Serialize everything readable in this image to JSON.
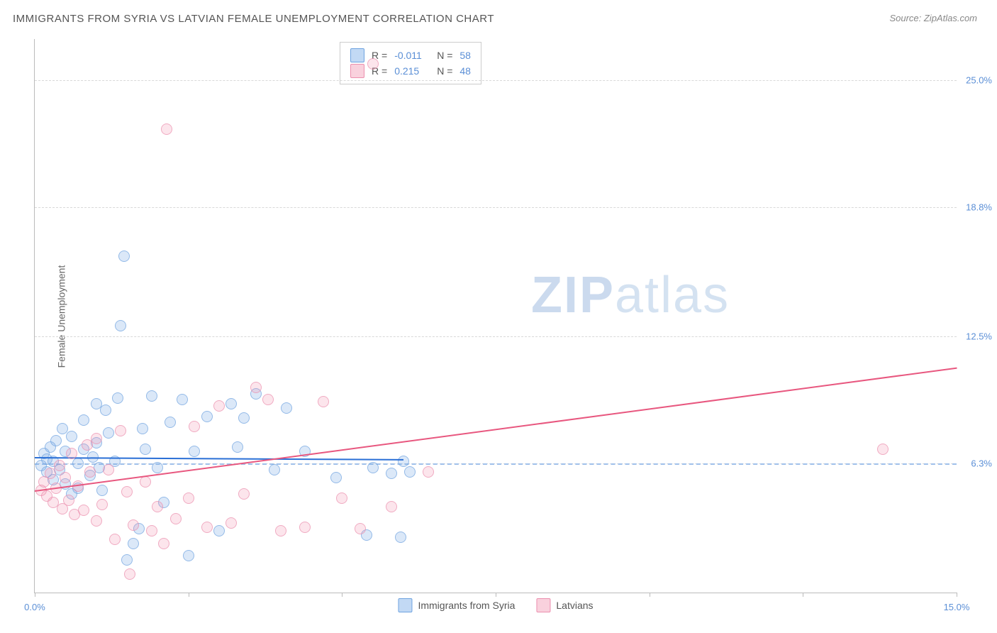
{
  "title": "IMMIGRANTS FROM SYRIA VS LATVIAN FEMALE UNEMPLOYMENT CORRELATION CHART",
  "source": "Source: ZipAtlas.com",
  "ylabel": "Female Unemployment",
  "watermark_a": "ZIP",
  "watermark_b": "atlas",
  "chart": {
    "type": "scatter",
    "xlim": [
      0,
      15
    ],
    "ylim": [
      0,
      27
    ],
    "x_ticks": [
      0,
      2.5,
      5,
      7.5,
      10,
      12.5,
      15
    ],
    "x_tick_labels": {
      "0": "0.0%",
      "15": "15.0%"
    },
    "y_gridlines": [
      6.3,
      12.5,
      18.8,
      25.0
    ],
    "y_tick_labels": [
      "6.3%",
      "12.5%",
      "18.8%",
      "25.0%"
    ],
    "ref_dash_y": 6.3,
    "background_color": "#ffffff",
    "grid_color": "#d8d8d8",
    "axis_color": "#bbbbbb",
    "tick_label_color": "#5b8fd6",
    "marker_size": 14,
    "series": [
      {
        "name": "Immigrants from Syria",
        "color_fill": "rgba(120,170,230,0.35)",
        "color_stroke": "#6fa3e0",
        "trend_color": "#2a6fd6",
        "r": -0.011,
        "n": 58,
        "trend": {
          "x1": 0,
          "y1": 6.6,
          "x2": 6.0,
          "y2": 6.5
        },
        "points": [
          [
            0.1,
            6.2
          ],
          [
            0.15,
            6.8
          ],
          [
            0.2,
            5.9
          ],
          [
            0.2,
            6.5
          ],
          [
            0.25,
            7.1
          ],
          [
            0.3,
            5.5
          ],
          [
            0.3,
            6.4
          ],
          [
            0.35,
            7.4
          ],
          [
            0.4,
            6.0
          ],
          [
            0.45,
            8.0
          ],
          [
            0.5,
            5.3
          ],
          [
            0.5,
            6.9
          ],
          [
            0.6,
            7.6
          ],
          [
            0.6,
            4.8
          ],
          [
            0.7,
            5.1
          ],
          [
            0.7,
            6.3
          ],
          [
            0.8,
            7.0
          ],
          [
            0.8,
            8.4
          ],
          [
            0.9,
            5.7
          ],
          [
            0.95,
            6.6
          ],
          [
            1.0,
            9.2
          ],
          [
            1.0,
            7.3
          ],
          [
            1.05,
            6.1
          ],
          [
            1.1,
            5.0
          ],
          [
            1.15,
            8.9
          ],
          [
            1.2,
            7.8
          ],
          [
            1.3,
            6.4
          ],
          [
            1.35,
            9.5
          ],
          [
            1.4,
            13.0
          ],
          [
            1.45,
            16.4
          ],
          [
            1.5,
            1.6
          ],
          [
            1.6,
            2.4
          ],
          [
            1.7,
            3.1
          ],
          [
            1.75,
            8.0
          ],
          [
            1.8,
            7.0
          ],
          [
            1.9,
            9.6
          ],
          [
            2.0,
            6.1
          ],
          [
            2.1,
            4.4
          ],
          [
            2.2,
            8.3
          ],
          [
            2.4,
            9.4
          ],
          [
            2.5,
            1.8
          ],
          [
            2.6,
            6.9
          ],
          [
            2.8,
            8.6
          ],
          [
            3.0,
            3.0
          ],
          [
            3.2,
            9.2
          ],
          [
            3.3,
            7.1
          ],
          [
            3.4,
            8.5
          ],
          [
            3.6,
            9.7
          ],
          [
            3.9,
            6.0
          ],
          [
            4.1,
            9.0
          ],
          [
            4.4,
            6.9
          ],
          [
            4.9,
            5.6
          ],
          [
            5.4,
            2.8
          ],
          [
            5.5,
            6.1
          ],
          [
            5.8,
            5.8
          ],
          [
            5.95,
            2.7
          ],
          [
            6.0,
            6.4
          ],
          [
            6.1,
            5.9
          ]
        ]
      },
      {
        "name": "Latvians",
        "color_fill": "rgba(240,140,170,0.3)",
        "color_stroke": "#ec8fae",
        "trend_color": "#e8577f",
        "r": 0.215,
        "n": 48,
        "trend": {
          "x1": 0,
          "y1": 5.0,
          "x2": 15.0,
          "y2": 11.0
        },
        "points": [
          [
            0.1,
            5.0
          ],
          [
            0.15,
            5.4
          ],
          [
            0.2,
            4.7
          ],
          [
            0.25,
            5.8
          ],
          [
            0.3,
            4.4
          ],
          [
            0.35,
            5.1
          ],
          [
            0.4,
            6.2
          ],
          [
            0.45,
            4.1
          ],
          [
            0.5,
            5.6
          ],
          [
            0.55,
            4.5
          ],
          [
            0.6,
            6.8
          ],
          [
            0.65,
            3.8
          ],
          [
            0.7,
            5.2
          ],
          [
            0.8,
            4.0
          ],
          [
            0.85,
            7.2
          ],
          [
            0.9,
            5.9
          ],
          [
            1.0,
            3.5
          ],
          [
            1.0,
            7.5
          ],
          [
            1.1,
            4.3
          ],
          [
            1.2,
            6.0
          ],
          [
            1.3,
            2.6
          ],
          [
            1.4,
            7.9
          ],
          [
            1.5,
            4.9
          ],
          [
            1.55,
            0.9
          ],
          [
            1.6,
            3.3
          ],
          [
            1.8,
            5.4
          ],
          [
            1.9,
            3.0
          ],
          [
            2.0,
            4.2
          ],
          [
            2.1,
            2.4
          ],
          [
            2.15,
            22.6
          ],
          [
            2.3,
            3.6
          ],
          [
            2.5,
            4.6
          ],
          [
            2.6,
            8.1
          ],
          [
            2.8,
            3.2
          ],
          [
            3.0,
            9.1
          ],
          [
            3.2,
            3.4
          ],
          [
            3.4,
            4.8
          ],
          [
            3.6,
            10.0
          ],
          [
            3.8,
            9.4
          ],
          [
            4.0,
            3.0
          ],
          [
            4.4,
            3.2
          ],
          [
            4.7,
            9.3
          ],
          [
            5.0,
            4.6
          ],
          [
            5.3,
            3.1
          ],
          [
            5.5,
            25.8
          ],
          [
            5.8,
            4.2
          ],
          [
            6.4,
            5.9
          ],
          [
            13.8,
            7.0
          ]
        ]
      }
    ]
  },
  "legend_top": {
    "rows": [
      {
        "sw": "blue",
        "r_label": "R =",
        "r": "-0.011",
        "n_label": "N =",
        "n": "58"
      },
      {
        "sw": "pink",
        "r_label": "R =",
        "r": "0.215",
        "n_label": "N =",
        "n": "48"
      }
    ]
  },
  "legend_bottom": [
    {
      "sw": "blue",
      "label": "Immigrants from Syria"
    },
    {
      "sw": "pink",
      "label": "Latvians"
    }
  ]
}
